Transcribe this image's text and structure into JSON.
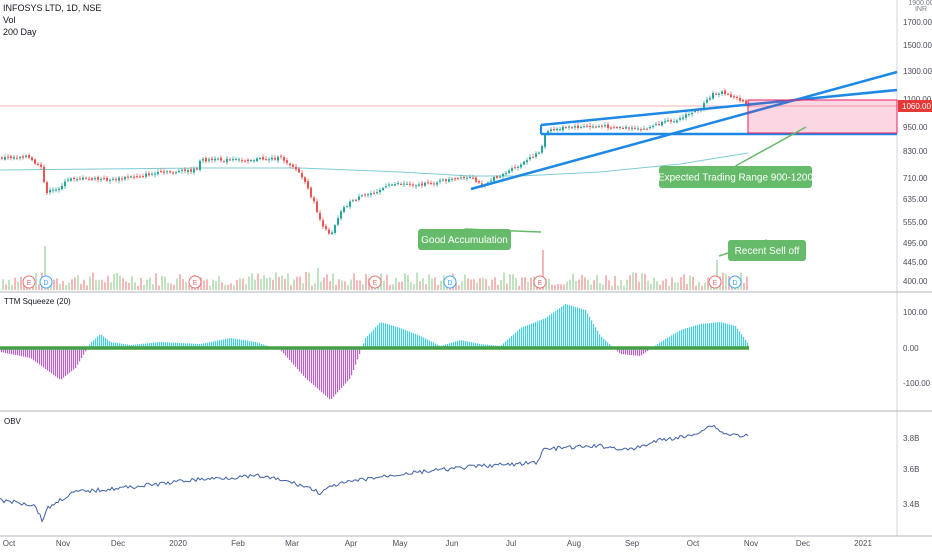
{
  "header": {
    "symbol_line": "INFOSYS LTD, 1D, NSE",
    "volume_label": "Vol",
    "ma_label": "200 Day"
  },
  "price_axis": {
    "currency": "INR",
    "top_label": "1900.00",
    "ticks": [
      "1700.00",
      "1500.00",
      "1300.00",
      "1100.00",
      "950.00",
      "830.00",
      "710.00",
      "635.00",
      "555.00",
      "495.00",
      "445.00",
      "400.00"
    ],
    "last_price": "1060.00",
    "last_price_color": "#e53935"
  },
  "time_axis": {
    "labels": [
      "Oct",
      "Nov",
      "Dec",
      "2020",
      "Feb",
      "Mar",
      "Apr",
      "May",
      "Jun",
      "Jul",
      "Aug",
      "Sep",
      "Oct",
      "Nov",
      "Dec",
      "2021"
    ]
  },
  "annotations": {
    "trading_range": "Expected Trading Range 900-1200",
    "accumulation": "Good Accumulation",
    "sell_off": "Recent Sell off"
  },
  "events": {
    "earnings": "E",
    "dividend": "D"
  },
  "squeeze_panel": {
    "title": "TTM Squeeze (20)",
    "ticks": [
      "100.00",
      "0.00",
      "-100.00"
    ]
  },
  "obv_panel": {
    "title": "OBV",
    "ticks": [
      "3.8B",
      "3.6B",
      "3.4B"
    ]
  },
  "colors": {
    "up": "#26a69a",
    "down": "#ef5350",
    "trendline": "#1e88e5",
    "ma": "#7ecbd6",
    "range_box": "#e91e63",
    "callout": "#66bb6a",
    "squeeze_pos": "#26c6da",
    "squeeze_neg": "#ab47bc",
    "squeeze_dot": "#43a047",
    "obv_line": "#3f5fa8"
  },
  "chart_data": [
    {
      "type": "candlestick",
      "title": "INFOSYS LTD, 1D, NSE",
      "y_scale": "log",
      "ylim": [
        380,
        1900
      ],
      "x": [
        "2019-10",
        "2019-11",
        "2019-12",
        "2020-01",
        "2020-02",
        "2020-03",
        "2020-04",
        "2020-05",
        "2020-06",
        "2020-07",
        "2020-08",
        "2020-09",
        "2020-10",
        "2020-10-30"
      ],
      "close_approx": [
        790,
        680,
        720,
        740,
        770,
        560,
        650,
        700,
        720,
        880,
        960,
        980,
        1150,
        1060
      ],
      "series": [
        {
          "name": "200 Day",
          "values": [
            720,
            725,
            730,
            735,
            738,
            738,
            735,
            730,
            728,
            735,
            750,
            770,
            800,
            820
          ]
        }
      ]
    },
    {
      "type": "bar",
      "title": "TTM Squeeze (20)",
      "ylim": [
        -150,
        130
      ],
      "x": [
        "2019-10",
        "2019-11",
        "2019-12",
        "2020-01",
        "2020-02",
        "2020-03",
        "2020-04",
        "2020-05",
        "2020-06",
        "2020-07",
        "2020-08",
        "2020-09",
        "2020-10",
        "2020-10-30"
      ],
      "values": [
        -8,
        -80,
        35,
        10,
        20,
        -130,
        70,
        40,
        15,
        60,
        125,
        -30,
        70,
        50
      ]
    },
    {
      "type": "line",
      "title": "OBV",
      "x": [
        "2019-10",
        "2019-11",
        "2019-12",
        "2020-01",
        "2020-02",
        "2020-03",
        "2020-04",
        "2020-05",
        "2020-06",
        "2020-07",
        "2020-08",
        "2020-09",
        "2020-10",
        "2020-10-30"
      ],
      "values": [
        3.45,
        3.48,
        3.5,
        3.53,
        3.56,
        3.55,
        3.6,
        3.64,
        3.67,
        3.8,
        3.85,
        3.86,
        3.92,
        3.88
      ],
      "ylabel": "",
      "tick_labels": [
        "3.8B",
        "3.6B",
        "3.4B"
      ]
    }
  ]
}
